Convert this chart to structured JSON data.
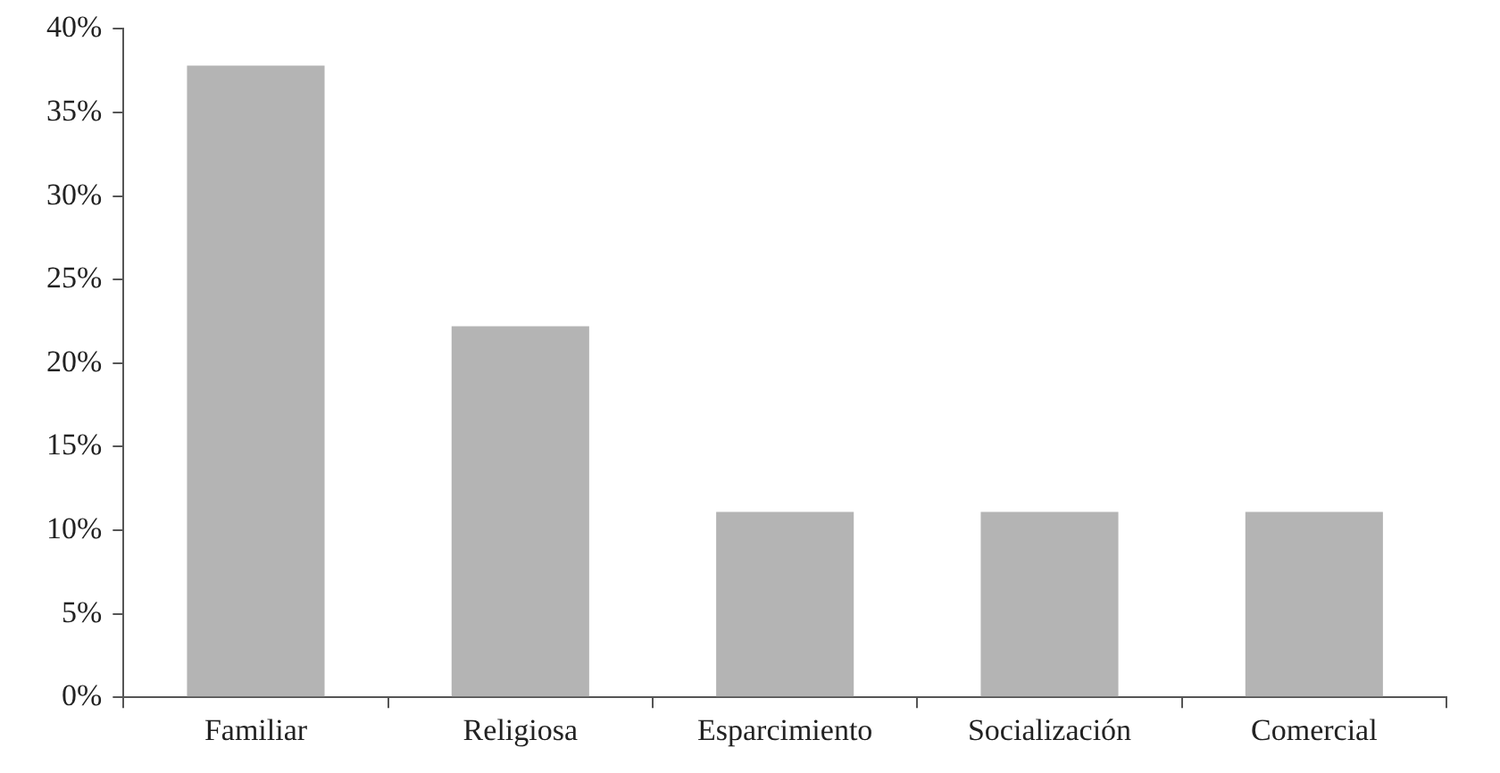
{
  "chart_data": {
    "type": "bar",
    "categories": [
      "Familiar",
      "Religiosa",
      "Esparcimiento",
      "Socialización",
      "Comercial"
    ],
    "values": [
      37.8,
      22.2,
      11.1,
      11.1,
      11.1
    ],
    "color": "#b4b4b4",
    "ylim": [
      0,
      40
    ],
    "yticks": [
      {
        "value": 0,
        "label": "0%"
      },
      {
        "value": 5,
        "label": "5%"
      },
      {
        "value": 10,
        "label": "10%"
      },
      {
        "value": 15,
        "label": "15%"
      },
      {
        "value": 20,
        "label": "20%"
      },
      {
        "value": 25,
        "label": "25%"
      },
      {
        "value": 30,
        "label": "30%"
      },
      {
        "value": 35,
        "label": "35%"
      },
      {
        "value": 40,
        "label": "40%"
      }
    ],
    "grid": false,
    "legend": false
  }
}
